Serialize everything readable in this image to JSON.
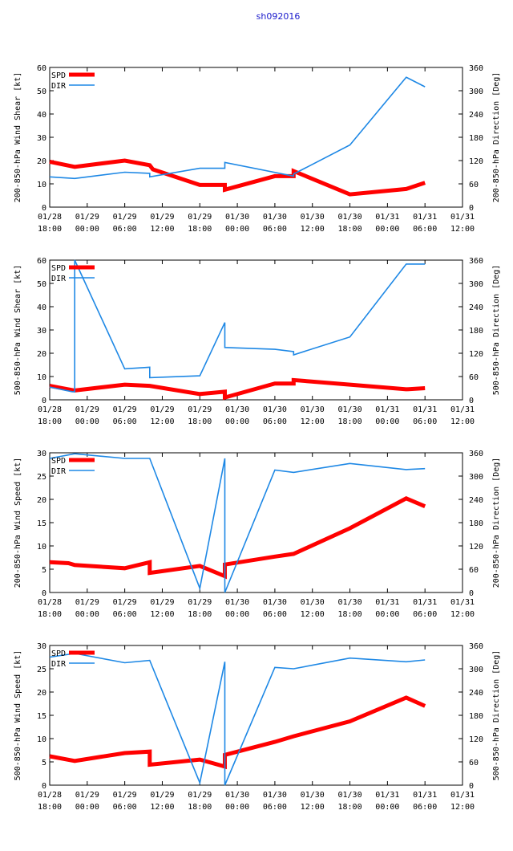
{
  "page_title": "sh092016",
  "colors": {
    "spd": "#ff0000",
    "dir": "#1e88e5",
    "title": "#1a1acc"
  },
  "x_tick_labels": [
    [
      "01/28",
      "18:00"
    ],
    [
      "01/29",
      "00:00"
    ],
    [
      "01/29",
      "06:00"
    ],
    [
      "01/29",
      "12:00"
    ],
    [
      "01/29",
      "18:00"
    ],
    [
      "01/30",
      "00:00"
    ],
    [
      "01/30",
      "06:00"
    ],
    [
      "01/30",
      "12:00"
    ],
    [
      "01/30",
      "18:00"
    ],
    [
      "01/31",
      "00:00"
    ],
    [
      "01/31",
      "06:00"
    ],
    [
      "01/31",
      "12:00"
    ]
  ],
  "legend": {
    "spd": "SPD",
    "dir": "DIR"
  },
  "chart_data": [
    {
      "type": "line",
      "title": "",
      "xlabel": "",
      "ylabel": "200-850-hPa Wind Shear [kt]",
      "y2label": "200-850-hPa Direction [Deg]",
      "xlim": [
        0,
        66
      ],
      "ylim": [
        0,
        60
      ],
      "y2lim": [
        0,
        360
      ],
      "yticks": [
        0,
        10,
        20,
        30,
        40,
        50,
        60
      ],
      "y2ticks": [
        0,
        60,
        120,
        180,
        240,
        300,
        360
      ],
      "series": [
        {
          "name": "SPD",
          "axis": "left",
          "x": [
            0,
            4,
            12,
            16,
            16.5,
            24,
            28,
            28,
            36,
            39,
            39,
            48,
            57,
            60
          ],
          "values": [
            19.5,
            17.3,
            20,
            18,
            16.2,
            9.5,
            9.5,
            7.5,
            13.3,
            13.3,
            15.5,
            5.5,
            7.8,
            10.5
          ]
        },
        {
          "name": "DIR",
          "axis": "left",
          "x": [
            0,
            4,
            12,
            16,
            16,
            24,
            28,
            28,
            39,
            39,
            48,
            57,
            60
          ],
          "values": [
            13,
            12.3,
            15,
            14.5,
            13,
            16.7,
            16.7,
            19.2,
            13.3,
            14.2,
            26.7,
            55.8,
            51.7
          ]
        }
      ]
    },
    {
      "type": "line",
      "title": "",
      "xlabel": "",
      "ylabel": "500-850-hPa Wind Shear [kt]",
      "y2label": "500-850-hPa Direction [Deg]",
      "xlim": [
        0,
        66
      ],
      "ylim": [
        0,
        60
      ],
      "y2lim": [
        0,
        360
      ],
      "yticks": [
        0,
        10,
        20,
        30,
        40,
        50,
        60
      ],
      "y2ticks": [
        0,
        60,
        120,
        180,
        240,
        300,
        360
      ],
      "series": [
        {
          "name": "SPD",
          "axis": "left",
          "x": [
            0,
            4,
            12,
            16,
            24,
            28,
            28,
            36,
            39,
            39,
            48,
            57,
            60
          ],
          "values": [
            6,
            4,
            6.5,
            6,
            2.5,
            3.5,
            1,
            7,
            7,
            8.5,
            6.5,
            4.5,
            5
          ]
        },
        {
          "name": "DIR",
          "axis": "left",
          "x": [
            0,
            3.6,
            4,
            4,
            12,
            16,
            16,
            24,
            28,
            28,
            36,
            39,
            39,
            48,
            57,
            60
          ],
          "values": [
            5.5,
            3.5,
            3.5,
            60,
            13.3,
            14,
            9.5,
            10.3,
            33.2,
            22.5,
            21.7,
            20.7,
            19.3,
            27,
            58.3,
            58.3
          ]
        }
      ]
    },
    {
      "type": "line",
      "title": "",
      "xlabel": "",
      "ylabel": "200-850-hPa Wind Speed [kt]",
      "y2label": "200-850-hPa Direction [Deg]",
      "xlim": [
        0,
        66
      ],
      "ylim": [
        0,
        30
      ],
      "y2lim": [
        0,
        360
      ],
      "yticks": [
        0,
        5,
        10,
        15,
        20,
        25,
        30
      ],
      "y2ticks": [
        0,
        60,
        120,
        180,
        240,
        300,
        360
      ],
      "series": [
        {
          "name": "SPD",
          "axis": "left",
          "x": [
            0,
            3,
            4,
            12,
            16,
            16,
            24,
            28,
            28,
            36,
            39,
            48,
            57,
            60
          ],
          "values": [
            6.5,
            6.3,
            5.9,
            5.2,
            6.5,
            4.2,
            5.7,
            3.5,
            6,
            7.7,
            8.3,
            13.8,
            20.2,
            18.5
          ]
        },
        {
          "name": "DIR",
          "axis": "left",
          "x": [
            0,
            4,
            12,
            16,
            24,
            28,
            28,
            36,
            39,
            48,
            57,
            60
          ],
          "values": [
            28.8,
            29.8,
            28.8,
            28.8,
            0.9,
            28.8,
            0,
            26.3,
            25.8,
            27.7,
            26.4,
            26.6
          ]
        }
      ]
    },
    {
      "type": "line",
      "title": "",
      "xlabel": "",
      "ylabel": "500-850-hPa Wind Speed [kt]",
      "y2label": "500-850-hPa Direction [Deg]",
      "xlim": [
        0,
        66
      ],
      "ylim": [
        0,
        30
      ],
      "y2lim": [
        0,
        360
      ],
      "yticks": [
        0,
        5,
        10,
        15,
        20,
        25,
        30
      ],
      "y2ticks": [
        0,
        60,
        120,
        180,
        240,
        300,
        360
      ],
      "series": [
        {
          "name": "SPD",
          "axis": "left",
          "x": [
            0,
            4,
            12,
            16,
            16,
            24,
            28,
            28,
            36,
            39,
            48,
            57,
            60
          ],
          "values": [
            6.2,
            5.2,
            6.9,
            7.2,
            4.4,
            5.5,
            4,
            6.5,
            9.3,
            10.5,
            13.7,
            18.8,
            17
          ]
        },
        {
          "name": "DIR",
          "axis": "left",
          "x": [
            0,
            4,
            12,
            16,
            24,
            28,
            28,
            36,
            39,
            48,
            57,
            60
          ],
          "values": [
            27.5,
            28.3,
            26.3,
            26.8,
            0.5,
            26.5,
            0,
            25.3,
            25,
            27.3,
            26.5,
            26.9
          ]
        }
      ]
    }
  ]
}
